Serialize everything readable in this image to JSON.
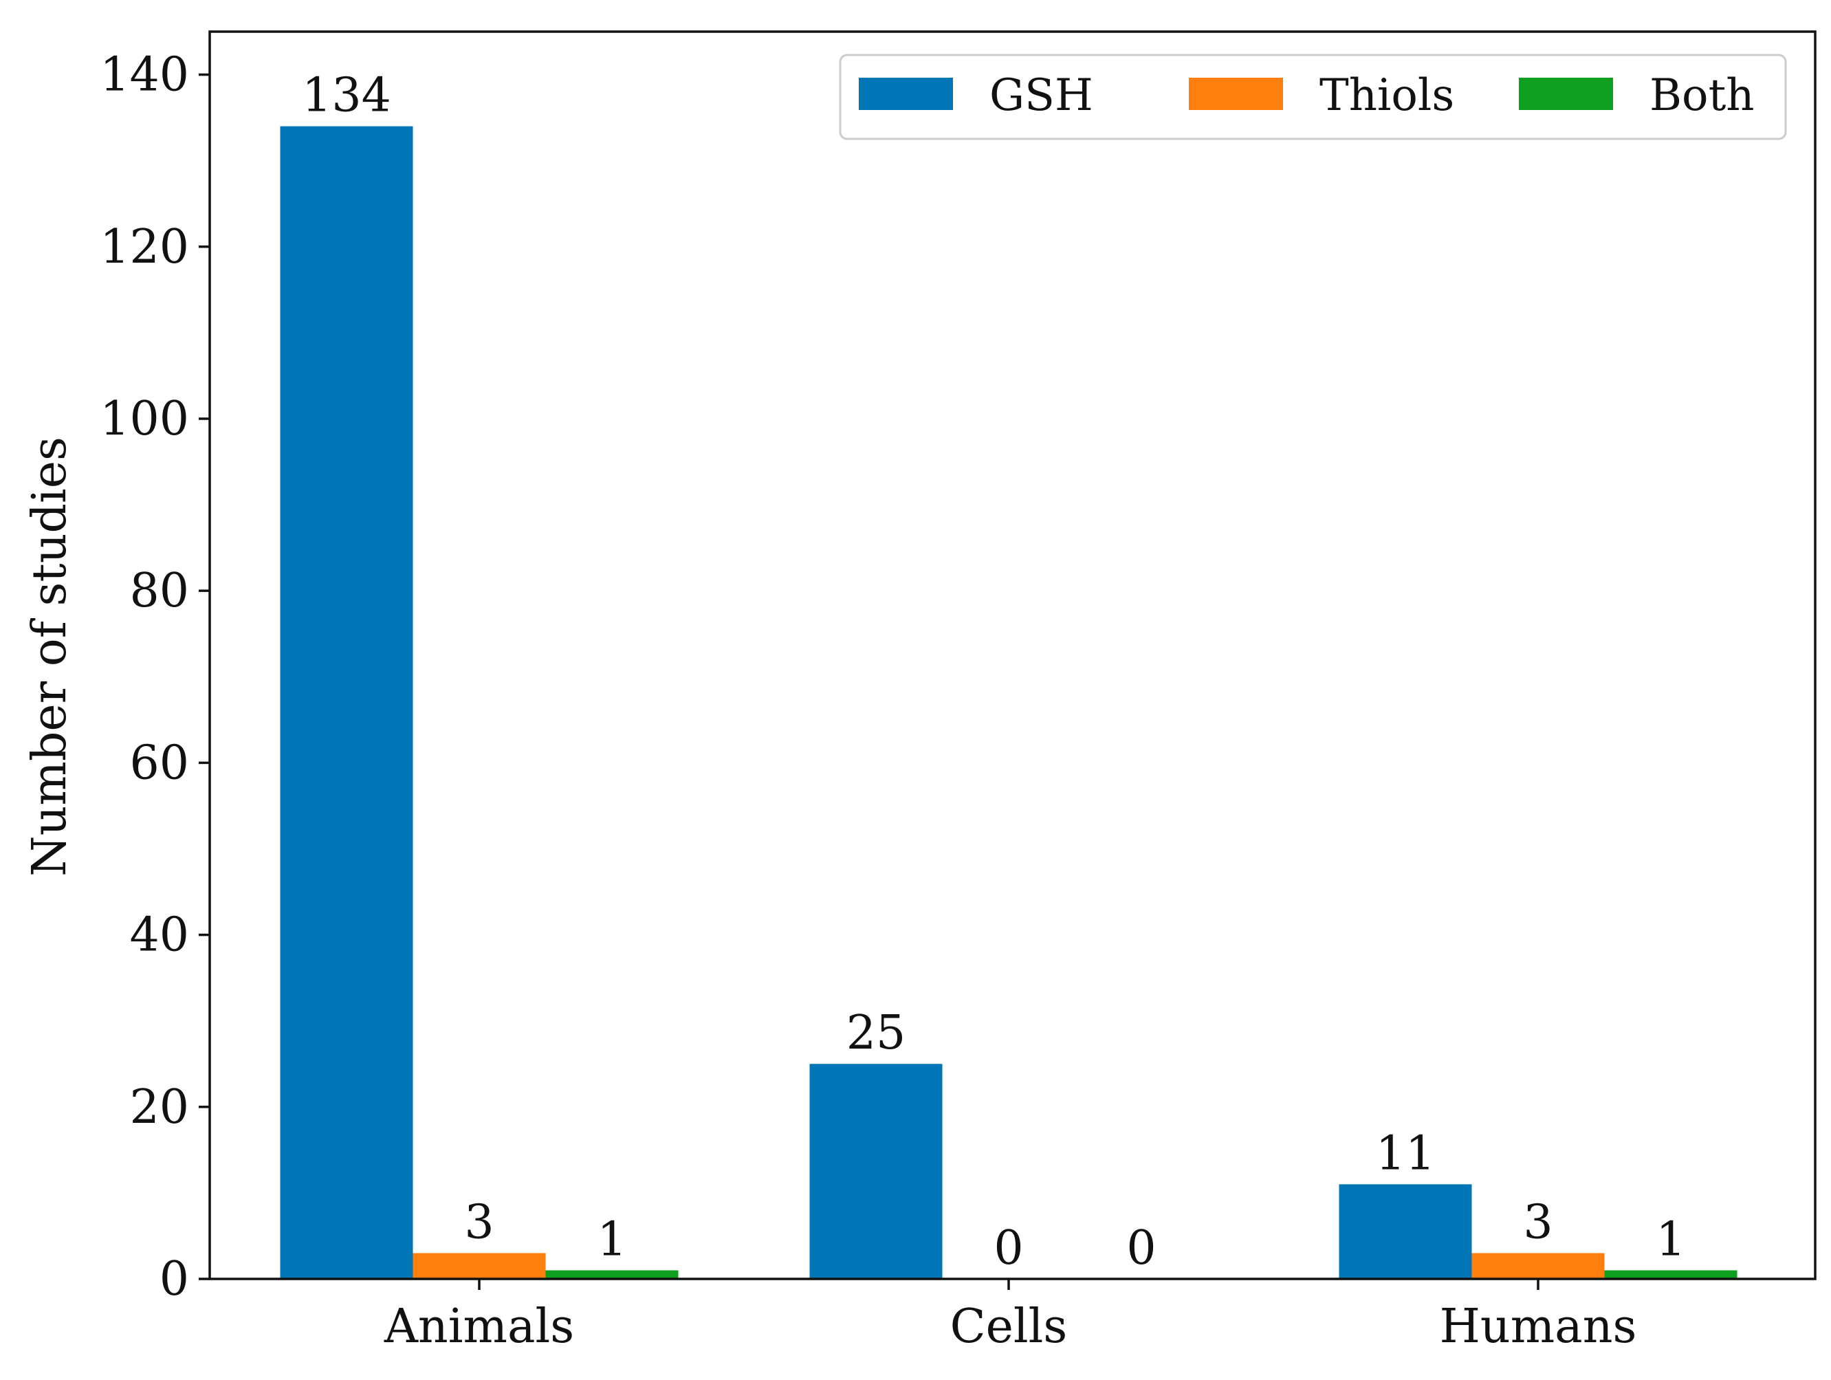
{
  "chart_data": {
    "type": "bar",
    "title": "",
    "xlabel": "",
    "ylabel": "Number of studies",
    "ylim": [
      0,
      145
    ],
    "yticks": [
      0,
      20,
      40,
      60,
      80,
      100,
      120,
      140
    ],
    "categories": [
      "Animals",
      "Cells",
      "Humans"
    ],
    "series": [
      {
        "name": "GSH",
        "color": "#0076b6",
        "values": [
          134,
          25,
          11
        ]
      },
      {
        "name": "Thiols",
        "color": "#ff7f0e",
        "values": [
          3,
          0,
          3
        ]
      },
      {
        "name": "Both",
        "color": "#0f9f1f",
        "values": [
          1,
          0,
          1
        ]
      }
    ],
    "data_labels": true,
    "legend": {
      "placement": "top-right",
      "columns": 3
    },
    "grid": false
  }
}
